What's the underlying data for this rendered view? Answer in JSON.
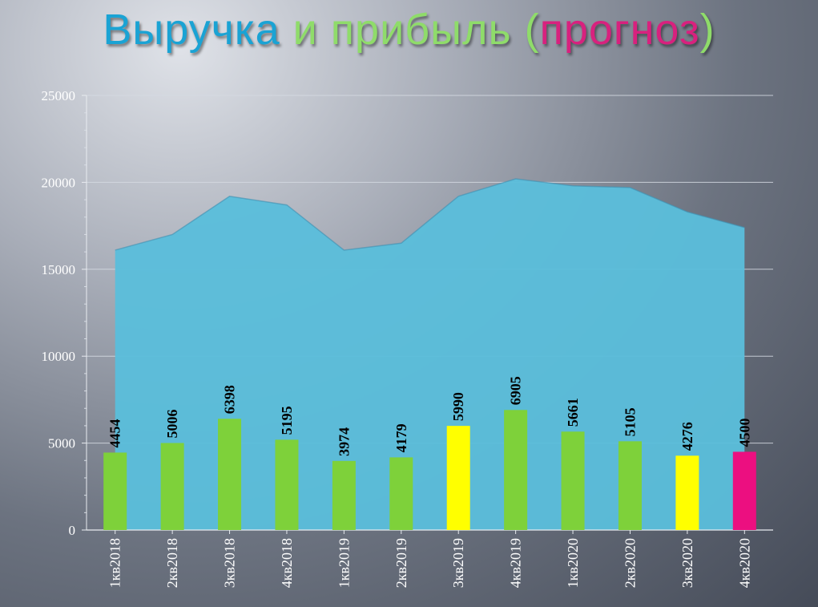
{
  "title": {
    "part1": "Выручка",
    "part2": " и прибыль (",
    "part3": "прогноз",
    "part4": ")"
  },
  "colors": {
    "title_revenue": "#1aa3d4",
    "title_profit": "#8fdc6a",
    "title_forecast": "#d8217e",
    "area": "#5bbddb",
    "bar_default": "#7ed13a",
    "bar_highlight": "#ffff00",
    "bar_forecast": "#ec0f80"
  },
  "chart_data": {
    "type": "bar",
    "categories": [
      "1кв2018",
      "2кв2018",
      "3кв2018",
      "4кв2018",
      "1кв2019",
      "2кв2019",
      "3кв2019",
      "4кв2019",
      "1кв2020",
      "2кв2020",
      "3кв2020",
      "4кв2020"
    ],
    "ylim": [
      0,
      25000
    ],
    "yticks": [
      0,
      5000,
      10000,
      15000,
      20000,
      25000
    ],
    "grid": true,
    "series": [
      {
        "kind": "area",
        "values": [
          16100,
          17000,
          19200,
          18700,
          16100,
          16500,
          19200,
          20200,
          19800,
          19700,
          18300,
          17400
        ],
        "color": "#5bbddb"
      },
      {
        "kind": "bar",
        "values": [
          4454,
          5006,
          6398,
          5195,
          3974,
          4179,
          5990,
          6905,
          5661,
          5105,
          4276,
          4500
        ],
        "colors": [
          "#7ed13a",
          "#7ed13a",
          "#7ed13a",
          "#7ed13a",
          "#7ed13a",
          "#7ed13a",
          "#ffff00",
          "#7ed13a",
          "#7ed13a",
          "#7ed13a",
          "#ffff00",
          "#ec0f80"
        ],
        "data_labels": true
      }
    ]
  }
}
